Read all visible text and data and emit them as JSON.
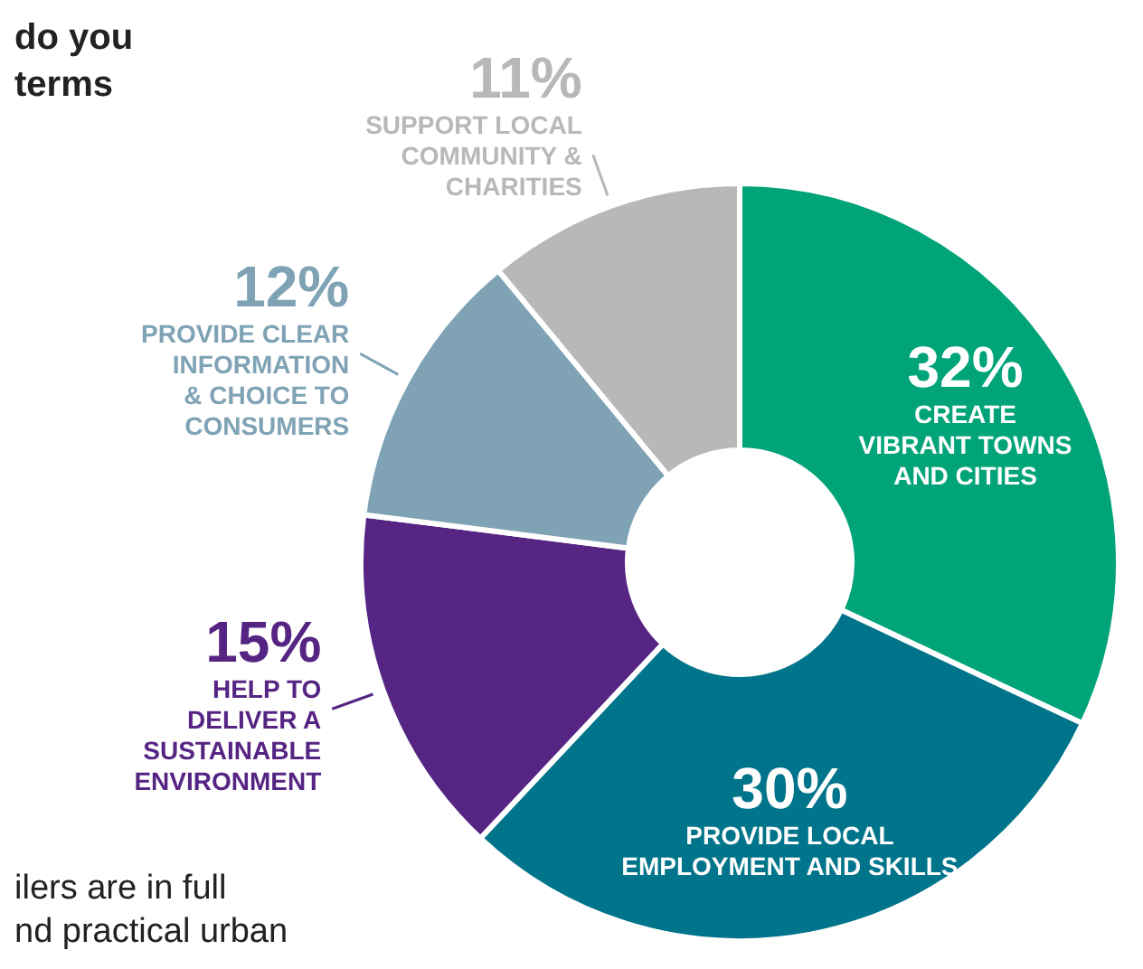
{
  "chart_data": {
    "type": "donut",
    "title": "do you\nterms",
    "annotations": [
      "ilers are in full\nnd practical urban"
    ],
    "categories": [
      "CREATE\nVIBRANT TOWNS\nAND CITIES",
      "PROVIDE LOCAL\nEMPLOYMENT AND SKILLS",
      "HELP TO\nDELIVER A\nSUSTAINABLE\nENVIRONMENT",
      "PROVIDE CLEAR\nINFORMATION\n& CHOICE TO\nCONSUMERS",
      "SUPPORT LOCAL\nCOMMUNITY &\nCHARITIES"
    ],
    "values": [
      32,
      30,
      15,
      12,
      11
    ],
    "value_labels": [
      "32%",
      "30%",
      "15%",
      "12%",
      "11%"
    ],
    "colors": [
      "#00a478",
      "#00748a",
      "#562583",
      "#7fa3b5",
      "#b8b8b8"
    ],
    "legend": false
  }
}
